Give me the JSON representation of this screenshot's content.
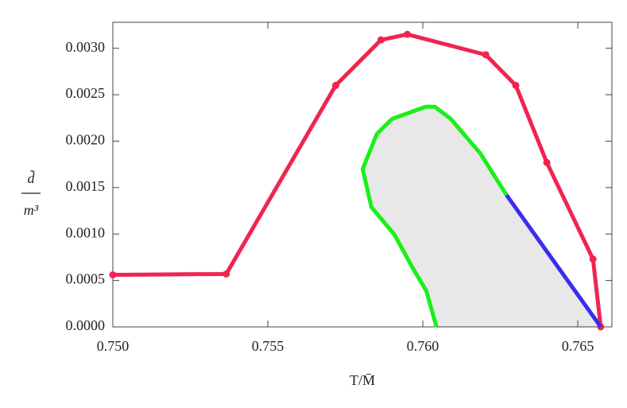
{
  "chart_data": {
    "type": "line",
    "x_label": "T/M̄",
    "y_label": {
      "numerator": "d̃",
      "denominator": "m³"
    },
    "xlim": [
      0.75,
      0.7661
    ],
    "ylim": [
      0,
      0.00328
    ],
    "xticks": [
      {
        "value": 0.75,
        "label": "0.750"
      },
      {
        "value": 0.755,
        "label": "0.755"
      },
      {
        "value": 0.76,
        "label": "0.760"
      },
      {
        "value": 0.765,
        "label": "0.765"
      }
    ],
    "yticks": [
      {
        "value": 0,
        "label": "0.0000"
      },
      {
        "value": 0.0005,
        "label": "0.0005"
      },
      {
        "value": 0.001,
        "label": "0.0010"
      },
      {
        "value": 0.0015,
        "label": "0.0015"
      },
      {
        "value": 0.002,
        "label": "0.0020"
      },
      {
        "value": 0.0025,
        "label": "0.0025"
      },
      {
        "value": 0.003,
        "label": "0.0030"
      }
    ],
    "fill_color": "#e8e8e8",
    "series": [
      {
        "color": "#f0254f",
        "markers": true,
        "x": [
          0.75,
          0.75366,
          0.75719,
          0.75865,
          0.7595,
          0.76203,
          0.763,
          0.764,
          0.76549,
          0.76574
        ],
        "values": [
          0.00056,
          0.00057,
          0.0026,
          0.00309,
          0.00315,
          0.00293,
          0.0026,
          0.00177,
          0.00073,
          0
        ]
      },
      {
        "color": "#19f019",
        "markers": false,
        "fill": true,
        "x": [
          0.76044,
          0.76011,
          0.75968,
          0.75909,
          0.75834,
          0.75806,
          0.75852,
          0.75901,
          0.76009,
          0.76039,
          0.7609,
          0.76185,
          0.7627
        ],
        "values": [
          0,
          0.00039,
          0.00063,
          0.00099,
          0.00129,
          0.0017,
          0.00208,
          0.00224,
          0.00237,
          0.00237,
          0.00224,
          0.00187,
          0.00142
        ]
      },
      {
        "color": "#3a2cf0",
        "markers": false,
        "fill": true,
        "x": [
          0.7627,
          0.76574
        ],
        "values": [
          0.00142,
          0
        ]
      }
    ]
  }
}
